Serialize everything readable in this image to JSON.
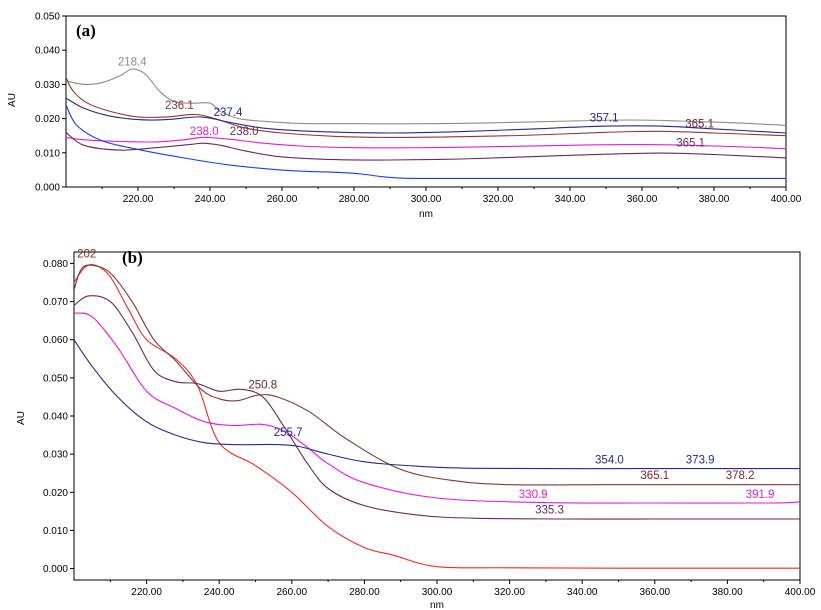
{
  "chart_data": [
    {
      "type": "line",
      "panel_label": "(a)",
      "xlabel": "nm",
      "ylabel": "AU",
      "xlim": [
        200,
        400
      ],
      "ylim": [
        0,
        0.05
      ],
      "x_ticks": [
        "220.00",
        "240.00",
        "260.00",
        "280.00",
        "300.00",
        "320.00",
        "340.00",
        "360.00",
        "380.00",
        "400.00"
      ],
      "y_ticks": [
        "0.000",
        "0.010",
        "0.020",
        "0.030",
        "0.040",
        "0.050"
      ],
      "grid": false,
      "series": [
        {
          "color": "#8c8c8c",
          "x": [
            200,
            205,
            210,
            215,
            218.4,
            222,
            226,
            230,
            235,
            240,
            243,
            248,
            255,
            265,
            280,
            300,
            320,
            340,
            357,
            370,
            385,
            400
          ],
          "y": [
            0.031,
            0.03,
            0.0305,
            0.0325,
            0.0345,
            0.033,
            0.028,
            0.025,
            0.0245,
            0.0245,
            0.022,
            0.02,
            0.0192,
            0.0186,
            0.0185,
            0.0185,
            0.0188,
            0.0193,
            0.0196,
            0.0193,
            0.0188,
            0.018
          ]
        },
        {
          "color": "#8b3a3a",
          "x": [
            200,
            202,
            206,
            212,
            220,
            228,
            236.1,
            242,
            250,
            260,
            275,
            290,
            310,
            330,
            350,
            365.1,
            380,
            400
          ],
          "y": [
            0.032,
            0.028,
            0.0245,
            0.0222,
            0.0205,
            0.0205,
            0.0212,
            0.0198,
            0.0172,
            0.0158,
            0.0148,
            0.0145,
            0.0147,
            0.0152,
            0.016,
            0.0163,
            0.0158,
            0.015
          ]
        },
        {
          "color": "#2a2a80",
          "x": [
            200,
            205,
            212,
            220,
            228,
            237.4,
            245,
            255,
            270,
            290,
            310,
            330,
            350,
            365,
            380,
            400
          ],
          "y": [
            0.026,
            0.023,
            0.0208,
            0.0197,
            0.0197,
            0.0205,
            0.019,
            0.0172,
            0.0162,
            0.0158,
            0.0162,
            0.017,
            0.0178,
            0.0178,
            0.017,
            0.0158
          ]
        },
        {
          "color": "#e020d0",
          "x": [
            200,
            205,
            215,
            225,
            232,
            238,
            245,
            255,
            265,
            280,
            300,
            320,
            340,
            360,
            380,
            400
          ],
          "y": [
            0.0145,
            0.0138,
            0.0133,
            0.0132,
            0.0137,
            0.0145,
            0.014,
            0.0128,
            0.012,
            0.0115,
            0.0115,
            0.0118,
            0.0122,
            0.0124,
            0.012,
            0.0112
          ]
        },
        {
          "color": "#6a2a5a",
          "x": [
            200,
            205,
            215,
            225,
            235,
            238,
            243,
            250,
            260,
            275,
            290,
            310,
            330,
            350,
            365.1,
            380,
            400
          ],
          "y": [
            0.016,
            0.0122,
            0.0108,
            0.0115,
            0.0125,
            0.0128,
            0.0122,
            0.0105,
            0.0088,
            0.008,
            0.0079,
            0.0082,
            0.0089,
            0.0096,
            0.0099,
            0.0095,
            0.0085
          ]
        },
        {
          "color": "#1e3cf0",
          "x": [
            200,
            203,
            210,
            220,
            230,
            245,
            262,
            275,
            282,
            290,
            300,
            330,
            360,
            400
          ],
          "y": [
            0.024,
            0.018,
            0.0135,
            0.011,
            0.009,
            0.0065,
            0.0048,
            0.0043,
            0.0038,
            0.0028,
            0.0025,
            0.0025,
            0.0025,
            0.0025
          ]
        }
      ],
      "annotations": [
        {
          "text": "218.4",
          "x": 218.4,
          "y": 0.0355,
          "color": "#8c8c8c"
        },
        {
          "text": "236.1",
          "x": 231.5,
          "y": 0.0228,
          "color": "#8b3a3a"
        },
        {
          "text": "237.4",
          "x": 245,
          "y": 0.0207,
          "color": "#2a2a80"
        },
        {
          "text": "238.0",
          "x": 238.4,
          "y": 0.0152,
          "color": "#e020d0"
        },
        {
          "text": "238.0",
          "x": 249.5,
          "y": 0.0152,
          "color": "#6a2a5a"
        },
        {
          "text": "357.1",
          "x": 349.5,
          "y": 0.0192,
          "color": "#2a2a80"
        },
        {
          "text": "365.1",
          "x": 376,
          "y": 0.0174,
          "color": "#6a2a3a"
        },
        {
          "text": "365.1",
          "x": 373.5,
          "y": 0.0118,
          "color": "#6a2a5a"
        }
      ]
    },
    {
      "type": "line",
      "panel_label": "(b)",
      "xlabel": "nm",
      "ylabel": "AU",
      "xlim": [
        200,
        400
      ],
      "ylim": [
        -0.003,
        0.083
      ],
      "x_ticks": [
        "220.00",
        "240.00",
        "260.00",
        "280.00",
        "300.00",
        "320.00",
        "340.00",
        "360.00",
        "380.00",
        "400.00"
      ],
      "y_ticks": [
        "0.000",
        "0.010",
        "0.020",
        "0.030",
        "0.040",
        "0.050",
        "0.060",
        "0.070",
        "0.080"
      ],
      "grid": false,
      "series": [
        {
          "color": "#e8302a",
          "x": [
            200,
            203,
            206,
            210,
            215,
            220,
            228,
            234,
            240,
            250,
            260,
            270,
            280,
            288,
            300,
            320,
            350,
            380,
            400
          ],
          "y": [
            0.075,
            0.079,
            0.0795,
            0.0765,
            0.068,
            0.06,
            0.055,
            0.048,
            0.033,
            0.027,
            0.02,
            0.011,
            0.0055,
            0.0035,
            0.0005,
            0.0002,
            0.0001,
            0.0001,
            0.0001
          ]
        },
        {
          "color": "#7a3a3a",
          "x": [
            200,
            202,
            205,
            210,
            216,
            222,
            228,
            235,
            240,
            245,
            250.8,
            256,
            265,
            275,
            290,
            305,
            320,
            345,
            365,
            378,
            400
          ],
          "y": [
            0.073,
            0.0785,
            0.0795,
            0.0775,
            0.07,
            0.06,
            0.0545,
            0.047,
            0.0445,
            0.044,
            0.0455,
            0.045,
            0.041,
            0.034,
            0.026,
            0.023,
            0.022,
            0.022,
            0.022,
            0.022,
            0.022
          ]
        },
        {
          "color": "#6a2a5a",
          "x": [
            200,
            204,
            210,
            216,
            222,
            228,
            234,
            240,
            246,
            252,
            258,
            264,
            270,
            280,
            295,
            310,
            335,
            360,
            400
          ],
          "y": [
            0.069,
            0.0715,
            0.07,
            0.062,
            0.052,
            0.049,
            0.0485,
            0.0465,
            0.047,
            0.045,
            0.037,
            0.028,
            0.021,
            0.0165,
            0.014,
            0.0132,
            0.013,
            0.013,
            0.013
          ]
        },
        {
          "color": "#e020d0",
          "x": [
            200,
            205,
            212,
            220,
            228,
            236,
            244,
            252,
            258,
            264,
            270,
            280,
            300,
            330,
            360,
            392,
            400
          ],
          "y": [
            0.067,
            0.066,
            0.058,
            0.0465,
            0.042,
            0.0385,
            0.0375,
            0.0378,
            0.036,
            0.032,
            0.0275,
            0.0225,
            0.0185,
            0.0173,
            0.0172,
            0.0172,
            0.0175
          ]
        },
        {
          "color": "#2a2a80",
          "x": [
            200,
            205,
            212,
            220,
            228,
            236,
            244,
            250,
            255.7,
            262,
            270,
            280,
            295,
            310,
            330,
            354,
            374,
            400
          ],
          "y": [
            0.06,
            0.053,
            0.045,
            0.0385,
            0.035,
            0.033,
            0.0325,
            0.0325,
            0.0325,
            0.032,
            0.03,
            0.028,
            0.0268,
            0.0263,
            0.0262,
            0.0262,
            0.0262,
            0.0262
          ]
        }
      ],
      "annotations": [
        {
          "text": "202",
          "x": 203.5,
          "y": 0.0815,
          "color": "#8b2a2a"
        },
        {
          "text": "250.8",
          "x": 252,
          "y": 0.0472,
          "color": "#6a2a2a"
        },
        {
          "text": "255.7",
          "x": 259,
          "y": 0.0348,
          "color": "#2a2a80"
        },
        {
          "text": "354.0",
          "x": 347.5,
          "y": 0.0275,
          "color": "#2a2a80"
        },
        {
          "text": "373.9",
          "x": 372.5,
          "y": 0.0275,
          "color": "#2a2a80"
        },
        {
          "text": "365.1",
          "x": 360,
          "y": 0.0235,
          "color": "#7a2a2a"
        },
        {
          "text": "378.2",
          "x": 383.5,
          "y": 0.0235,
          "color": "#7a2a2a"
        },
        {
          "text": "330.9",
          "x": 326.5,
          "y": 0.0185,
          "color": "#e020d0"
        },
        {
          "text": "391.9",
          "x": 389,
          "y": 0.0185,
          "color": "#e020d0"
        },
        {
          "text": "335.3",
          "x": 331,
          "y": 0.0145,
          "color": "#6a2a5a"
        }
      ]
    }
  ]
}
